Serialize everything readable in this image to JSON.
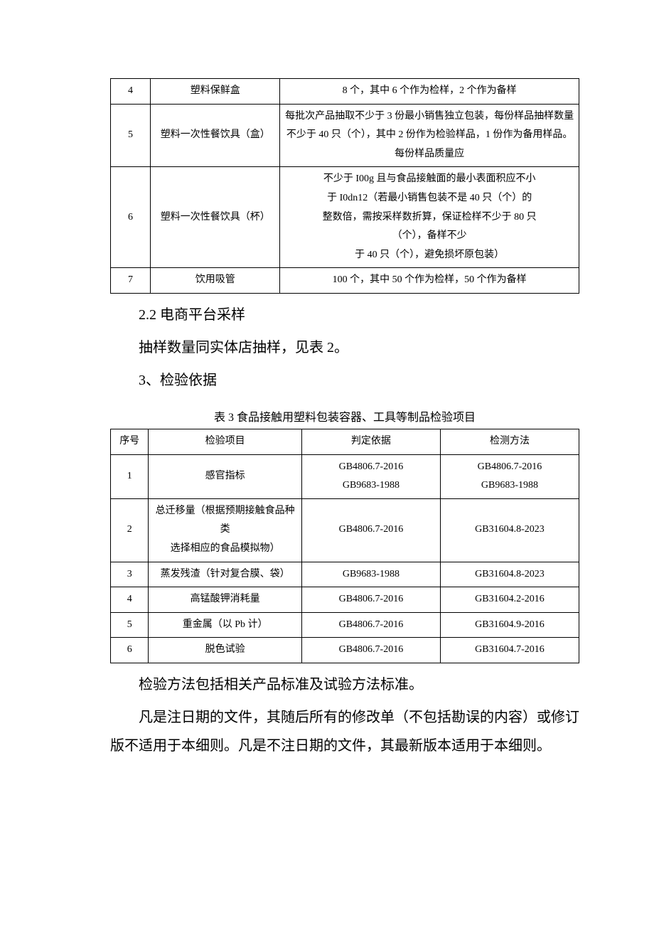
{
  "table2": {
    "rows": [
      {
        "seq": "4",
        "product": "塑料保鲜盒",
        "qty": "8 个，其中 6 个作为检样，2 个作为备样"
      },
      {
        "seq": "5",
        "product": "塑料一次性餐饮具（盒）",
        "qty": "每批次产品抽取不少于 3 份最小销售独立包装，每份样品抽样数量不少于 40 只（个），其中 2 份作为检验样品，1 份作为备用样品。每份样品质量应"
      },
      {
        "seq": "6",
        "product": "塑料一次性餐饮具（杯）",
        "qty_lines": [
          "不少于 I00g 且与食品接触面的最小表面积应不小",
          "于 I0dn12（若最小销售包装不是 40 只（个）的",
          "整数倍，需按采样数折算，保证检样不少于 80 只",
          "（个），备样不少",
          "于 40 只（个），避免损坏原包装）"
        ]
      },
      {
        "seq": "7",
        "product": "饮用吸管",
        "qty": "100 个，其中 50 个作为检样，50 个作为备样"
      }
    ]
  },
  "section22": "2.2 电商平台采样",
  "para22": "抽样数量同实体店抽样，见表 2。",
  "section3": "3、检验依据",
  "table3_caption": "表 3 食品接触用塑料包装容器、工具等制品检验项目",
  "table3": {
    "headers": {
      "seq": "序号",
      "item": "检验项目",
      "basis": "判定依据",
      "method": "检测方法"
    },
    "rows": [
      {
        "seq": "1",
        "item": "感官指标",
        "basis_lines": [
          "GB4806.7-2016",
          "GB9683-1988"
        ],
        "method_lines": [
          "GB4806.7-2016",
          "GB9683-1988"
        ]
      },
      {
        "seq": "2",
        "item_lines": [
          "总迁移量（根据预期接触食品种类",
          "选择相应的食品模拟物）"
        ],
        "basis": "GB4806.7-2016",
        "method": "GB31604.8-2023"
      },
      {
        "seq": "3",
        "item": "蒸发残渣（针对复合膜、袋）",
        "basis": "GB9683-1988",
        "method": "GB31604.8-2023"
      },
      {
        "seq": "4",
        "item": "高锰酸钾消耗量",
        "basis": "GB4806.7-2016",
        "method": "GB31604.2-2016"
      },
      {
        "seq": "5",
        "item": "重金属（以 Pb 计）",
        "basis": "GB4806.7-2016",
        "method": "GB31604.9-2016"
      },
      {
        "seq": "6",
        "item": "脱色试验",
        "basis": "GB4806.7-2016",
        "method": "GB31604.7-2016"
      }
    ]
  },
  "para3a": "检验方法包括相关产品标准及试验方法标准。",
  "para3b": "凡是注日期的文件，其随后所有的修改单（不包括勘误的内容）或修订版不适用于本细则。凡是不注日期的文件，其最新版本适用于本细则。"
}
